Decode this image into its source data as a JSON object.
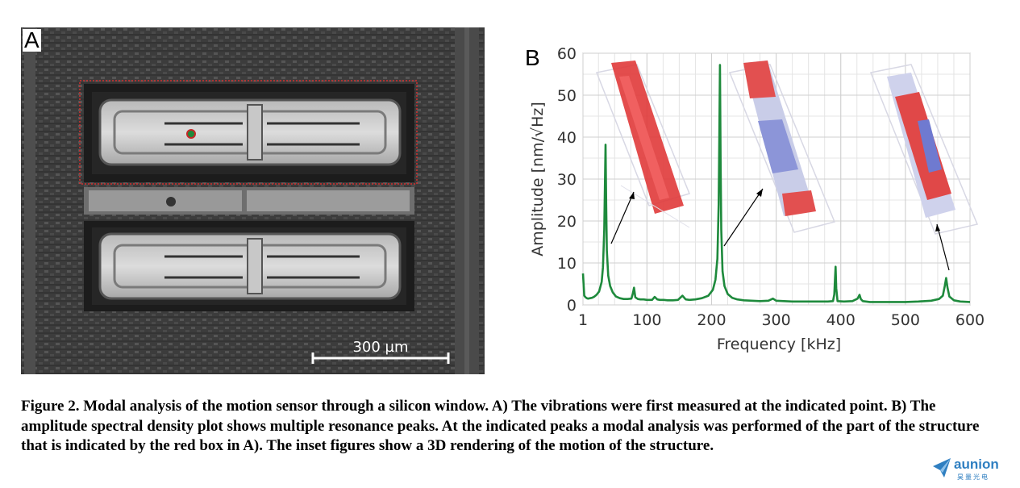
{
  "panel_a": {
    "letter": "A",
    "scale_bar_label": "300 µm"
  },
  "panel_b": {
    "letter": "B"
  },
  "chart_data": {
    "type": "line",
    "xlabel": "Frequency [kHz]",
    "ylabel": "Amplitude [nm/√Hz]",
    "xlim": [
      1,
      600
    ],
    "ylim": [
      0,
      60
    ],
    "xticks": [
      1,
      100,
      200,
      300,
      400,
      500,
      600
    ],
    "yticks": [
      0,
      10,
      20,
      30,
      40,
      50,
      60
    ],
    "grid": true,
    "series_color": "#1e8a3c",
    "peaks": [
      {
        "x": 36,
        "y": 38.2
      },
      {
        "x": 213,
        "y": 57.2
      },
      {
        "x": 392,
        "y": 9.1
      },
      {
        "x": 430,
        "y": 2.4
      },
      {
        "x": 563,
        "y": 6.4
      }
    ],
    "x": [
      1,
      3,
      5,
      7,
      9,
      12,
      15,
      18,
      22,
      26,
      30,
      32,
      34,
      35,
      36,
      37,
      38,
      40,
      43,
      47,
      52,
      58,
      64,
      70,
      76,
      78,
      80,
      82,
      86,
      90,
      95,
      100,
      108,
      112,
      116,
      120,
      126,
      132,
      140,
      148,
      155,
      160,
      166,
      175,
      185,
      195,
      202,
      206,
      209,
      211,
      212,
      213,
      214,
      215,
      217,
      220,
      225,
      232,
      240,
      250,
      262,
      275,
      288,
      295,
      300,
      312,
      325,
      340,
      355,
      370,
      380,
      388,
      390,
      391,
      392,
      393,
      395,
      405,
      418,
      426,
      429,
      431,
      434,
      445,
      460,
      480,
      500,
      520,
      540,
      552,
      558,
      561,
      563,
      565,
      568,
      575,
      585,
      600
    ],
    "y": [
      7.5,
      2.2,
      1.8,
      1.6,
      1.5,
      1.6,
      1.7,
      1.9,
      2.4,
      3.2,
      5.5,
      9,
      18,
      28,
      38.2,
      24,
      13,
      7,
      4.5,
      3,
      2,
      1.6,
      1.4,
      1.4,
      1.5,
      2.6,
      4.1,
      1.8,
      1.4,
      1.3,
      1.3,
      1.2,
      1.2,
      1.9,
      1.3,
      1.2,
      1.2,
      1.1,
      1.1,
      1.2,
      2.2,
      1.3,
      1.2,
      1.3,
      1.6,
      2.2,
      3.6,
      6,
      11,
      24,
      40,
      57.2,
      34,
      18,
      8,
      4.5,
      2.6,
      1.7,
      1.3,
      1.1,
      1,
      0.9,
      1,
      1.5,
      1,
      0.9,
      0.8,
      0.8,
      0.8,
      0.8,
      0.8,
      0.9,
      2.5,
      6,
      9.1,
      4,
      0.9,
      0.8,
      0.9,
      1.5,
      2.4,
      1.4,
      0.9,
      0.7,
      0.7,
      0.7,
      0.7,
      0.8,
      1,
      1.4,
      2.2,
      4.5,
      6.4,
      4.2,
      2,
      1.1,
      0.8,
      0.7
    ]
  },
  "caption": "Figure 2. Modal analysis of the motion sensor through a silicon window. A) The vibrations were first measured at the indicated point. B) The amplitude spectral density plot shows multiple resonance peaks. At the indicated peaks a modal analysis was performed of the part of the structure that is indicated by the red box in A). The inset figures show a 3D rendering of the motion of the structure.",
  "watermark": {
    "brand": "aunion",
    "sub": "昊量光电"
  }
}
